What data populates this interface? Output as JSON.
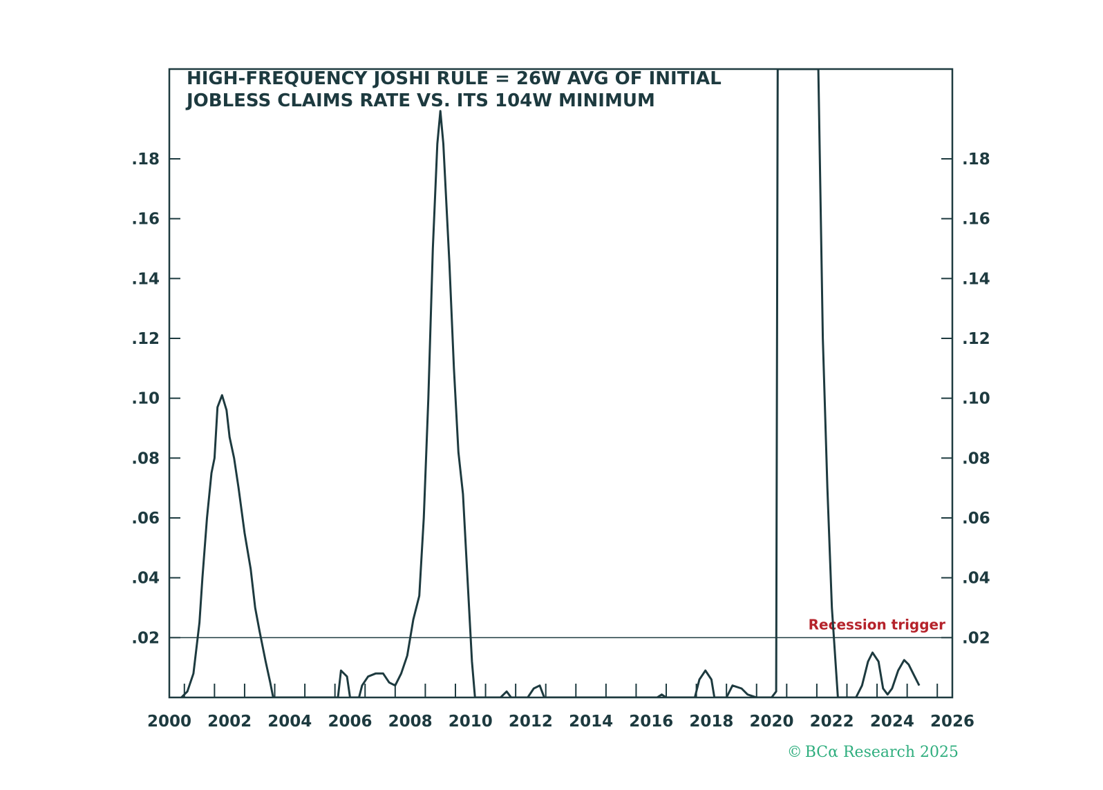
{
  "chart_data": {
    "type": "line",
    "title_lines": [
      "HIGH-FREQUENCY JOSHI RULE = 26W AVG OF INITIAL",
      "JOBLESS CLAIMS RATE VS. ITS 104W MINIMUM"
    ],
    "xlabel": "",
    "ylabel": "",
    "xlim": [
      2000,
      2026
    ],
    "ylim": [
      0,
      0.21
    ],
    "x_ticks": [
      2000,
      2002,
      2004,
      2006,
      2008,
      2010,
      2012,
      2014,
      2016,
      2018,
      2020,
      2022,
      2024,
      2026
    ],
    "x_tick_labels": [
      "2000",
      "2002",
      "2004",
      "2006",
      "2008",
      "2010",
      "2012",
      "2014",
      "2016",
      "2018",
      "2020",
      "2022",
      "2024",
      "2026"
    ],
    "y_ticks": [
      0.02,
      0.04,
      0.06,
      0.08,
      0.1,
      0.12,
      0.14,
      0.16,
      0.18
    ],
    "y_tick_labels": [
      ".02",
      ".04",
      ".06",
      ".08",
      ".10",
      ".12",
      ".14",
      ".16",
      ".18"
    ],
    "grid": false,
    "right_axis_mirror": true,
    "line_color": "#1d3a3f",
    "reference_line": {
      "value": 0.02,
      "label": "Recession trigger",
      "label_color": "#b5232b"
    },
    "series": [
      {
        "values": [
          [
            2000.4,
            0.0
          ],
          [
            2000.6,
            0.002
          ],
          [
            2000.8,
            0.008
          ],
          [
            2001.0,
            0.025
          ],
          [
            2001.1,
            0.04
          ],
          [
            2001.25,
            0.06
          ],
          [
            2001.4,
            0.075
          ],
          [
            2001.5,
            0.08
          ],
          [
            2001.6,
            0.097
          ],
          [
            2001.75,
            0.101
          ],
          [
            2001.9,
            0.096
          ],
          [
            2002.0,
            0.087
          ],
          [
            2002.15,
            0.08
          ],
          [
            2002.3,
            0.07
          ],
          [
            2002.5,
            0.055
          ],
          [
            2002.7,
            0.043
          ],
          [
            2002.85,
            0.03
          ],
          [
            2003.0,
            0.022
          ],
          [
            2003.2,
            0.012
          ],
          [
            2003.35,
            0.005
          ],
          [
            2003.45,
            0.0
          ],
          [
            2005.6,
            0.0
          ],
          [
            2005.7,
            0.009
          ],
          [
            2005.9,
            0.007
          ],
          [
            2006.0,
            0.0
          ],
          [
            2006.3,
            0.0
          ],
          [
            2006.4,
            0.004
          ],
          [
            2006.6,
            0.007
          ],
          [
            2006.85,
            0.008
          ],
          [
            2007.1,
            0.008
          ],
          [
            2007.3,
            0.005
          ],
          [
            2007.5,
            0.004
          ],
          [
            2007.7,
            0.008
          ],
          [
            2007.9,
            0.014
          ],
          [
            2008.1,
            0.026
          ],
          [
            2008.3,
            0.034
          ],
          [
            2008.45,
            0.06
          ],
          [
            2008.6,
            0.1
          ],
          [
            2008.75,
            0.15
          ],
          [
            2008.9,
            0.185
          ],
          [
            2009.0,
            0.196
          ],
          [
            2009.1,
            0.185
          ],
          [
            2009.3,
            0.145
          ],
          [
            2009.45,
            0.11
          ],
          [
            2009.6,
            0.082
          ],
          [
            2009.75,
            0.068
          ],
          [
            2009.9,
            0.04
          ],
          [
            2010.05,
            0.012
          ],
          [
            2010.15,
            0.0
          ],
          [
            2011.0,
            0.0
          ],
          [
            2011.2,
            0.002
          ],
          [
            2011.35,
            0.0
          ],
          [
            2011.9,
            0.0
          ],
          [
            2012.1,
            0.003
          ],
          [
            2012.3,
            0.004
          ],
          [
            2012.45,
            0.0
          ],
          [
            2016.2,
            0.0
          ],
          [
            2016.35,
            0.001
          ],
          [
            2016.5,
            0.0
          ],
          [
            2017.45,
            0.0
          ],
          [
            2017.6,
            0.006
          ],
          [
            2017.8,
            0.009
          ],
          [
            2018.0,
            0.006
          ],
          [
            2018.1,
            0.0
          ],
          [
            2018.5,
            0.0
          ],
          [
            2018.7,
            0.004
          ],
          [
            2019.0,
            0.003
          ],
          [
            2019.2,
            0.001
          ],
          [
            2019.5,
            0.0
          ],
          [
            2020.0,
            0.0
          ],
          [
            2020.15,
            0.002
          ],
          [
            2020.2,
            0.21
          ],
          [
            2021.55,
            0.21
          ],
          [
            2021.7,
            0.12
          ],
          [
            2021.85,
            0.07
          ],
          [
            2022.0,
            0.03
          ],
          [
            2022.2,
            0.0
          ],
          [
            2022.8,
            0.0
          ],
          [
            2023.0,
            0.004
          ],
          [
            2023.2,
            0.012
          ],
          [
            2023.35,
            0.015
          ],
          [
            2023.55,
            0.012
          ],
          [
            2023.7,
            0.003
          ],
          [
            2023.85,
            0.001
          ],
          [
            2024.0,
            0.003
          ],
          [
            2024.2,
            0.009
          ],
          [
            2024.4,
            0.0125
          ],
          [
            2024.55,
            0.011
          ],
          [
            2024.75,
            0.007
          ],
          [
            2024.9,
            0.004
          ]
        ]
      }
    ]
  },
  "credit": {
    "copyright_symbol": "©",
    "text": "BCα Research 2025"
  }
}
